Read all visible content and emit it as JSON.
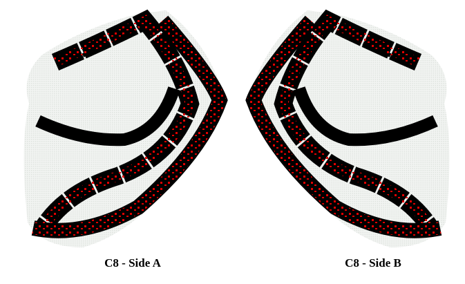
{
  "panels": [
    {
      "label": "C8 - Side A"
    },
    {
      "label": "C8 - Side B"
    }
  ]
}
